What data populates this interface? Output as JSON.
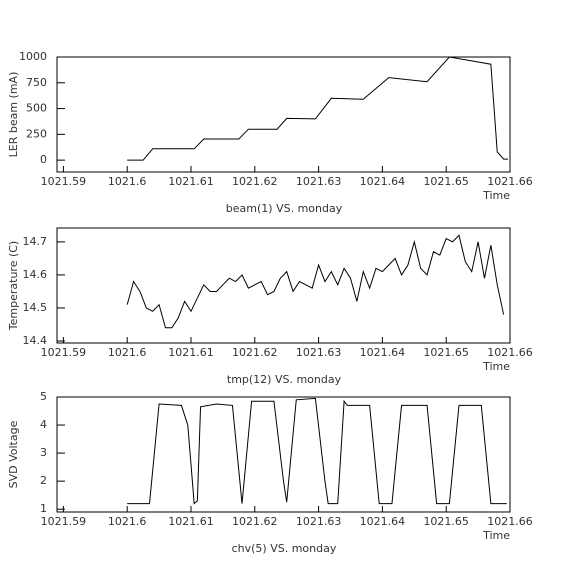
{
  "chart_data": [
    {
      "type": "line",
      "title": "beam(1) VS. monday",
      "x_label": "Time",
      "y_label": "LER beam (mA)",
      "color": "#000000",
      "x": [
        1021.6,
        1021.6025,
        1021.604,
        1021.6105,
        1021.612,
        1021.6175,
        1021.619,
        1021.6235,
        1021.625,
        1021.6295,
        1021.632,
        1021.637,
        1021.641,
        1021.647,
        1021.6505,
        1021.657,
        1021.658,
        1021.659,
        1021.6597
      ],
      "values": [
        0,
        0,
        110,
        110,
        205,
        205,
        300,
        300,
        405,
        400,
        600,
        590,
        800,
        760,
        1000,
        930,
        80,
        10,
        10
      ],
      "xlim": [
        1021.589,
        1021.66
      ],
      "ylim": [
        -115,
        1000
      ],
      "xticks": [
        1021.59,
        1021.6,
        1021.61,
        1021.62,
        1021.63,
        1021.64,
        1021.65,
        1021.66
      ],
      "yticks": [
        0,
        250,
        500,
        750,
        1000
      ]
    },
    {
      "type": "line",
      "title": "tmp(12) VS. monday",
      "x_label": "Time",
      "y_label": "Temperature (C)",
      "color": "#000000",
      "x": [
        1021.6,
        1021.601,
        1021.602,
        1021.603,
        1021.604,
        1021.605,
        1021.606,
        1021.607,
        1021.608,
        1021.609,
        1021.61,
        1021.611,
        1021.612,
        1021.613,
        1021.614,
        1021.615,
        1021.616,
        1021.617,
        1021.618,
        1021.619,
        1021.62,
        1021.621,
        1021.622,
        1021.623,
        1021.624,
        1021.625,
        1021.626,
        1021.627,
        1021.628,
        1021.629,
        1021.63,
        1021.631,
        1021.632,
        1021.633,
        1021.634,
        1021.635,
        1021.636,
        1021.637,
        1021.638,
        1021.639,
        1021.64,
        1021.641,
        1021.642,
        1021.643,
        1021.644,
        1021.645,
        1021.646,
        1021.647,
        1021.648,
        1021.649,
        1021.65,
        1021.651,
        1021.652,
        1021.653,
        1021.654,
        1021.655,
        1021.656,
        1021.657,
        1021.658,
        1021.659
      ],
      "values": [
        14.51,
        14.58,
        14.55,
        14.5,
        14.49,
        14.51,
        14.44,
        14.44,
        14.47,
        14.52,
        14.49,
        14.53,
        14.57,
        14.55,
        14.55,
        14.57,
        14.59,
        14.58,
        14.6,
        14.56,
        14.57,
        14.58,
        14.54,
        14.55,
        14.59,
        14.61,
        14.55,
        14.58,
        14.57,
        14.56,
        14.63,
        14.58,
        14.61,
        14.57,
        14.62,
        14.59,
        14.52,
        14.61,
        14.56,
        14.62,
        14.61,
        14.63,
        14.65,
        14.6,
        14.63,
        14.7,
        14.62,
        14.6,
        14.67,
        14.66,
        14.71,
        14.7,
        14.72,
        14.64,
        14.61,
        14.7,
        14.59,
        14.69,
        14.57,
        14.48
      ],
      "xlim": [
        1021.589,
        1021.66
      ],
      "ylim": [
        14.394,
        14.742
      ],
      "xticks": [
        1021.59,
        1021.6,
        1021.61,
        1021.62,
        1021.63,
        1021.64,
        1021.65,
        1021.66
      ],
      "yticks": [
        14.4,
        14.5,
        14.6,
        14.7
      ]
    },
    {
      "type": "line",
      "title": "chv(5) VS. monday",
      "x_label": "Time",
      "y_label": "SVD Voltage",
      "color": "#000000",
      "x": [
        1021.6,
        1021.6035,
        1021.605,
        1021.6085,
        1021.6095,
        1021.6105,
        1021.611,
        1021.6115,
        1021.614,
        1021.6165,
        1021.618,
        1021.6195,
        1021.623,
        1021.6245,
        1021.625,
        1021.6265,
        1021.6295,
        1021.631,
        1021.6315,
        1021.633,
        1021.634,
        1021.6345,
        1021.638,
        1021.6395,
        1021.6415,
        1021.643,
        1021.647,
        1021.6485,
        1021.6505,
        1021.652,
        1021.6555,
        1021.657,
        1021.6595
      ],
      "values": [
        1.2,
        1.2,
        4.75,
        4.7,
        4.0,
        1.2,
        1.3,
        4.65,
        4.75,
        4.7,
        1.2,
        4.85,
        4.85,
        2.0,
        1.25,
        4.9,
        4.95,
        2.0,
        1.2,
        1.2,
        4.85,
        4.7,
        4.7,
        1.2,
        1.2,
        4.7,
        4.7,
        1.2,
        1.2,
        4.7,
        4.7,
        1.2,
        1.2
      ],
      "xlim": [
        1021.589,
        1021.66
      ],
      "ylim": [
        0.9,
        5
      ],
      "xticks": [
        1021.59,
        1021.6,
        1021.61,
        1021.62,
        1021.63,
        1021.64,
        1021.65,
        1021.66
      ],
      "yticks": [
        1,
        2,
        3,
        4,
        5
      ]
    }
  ]
}
